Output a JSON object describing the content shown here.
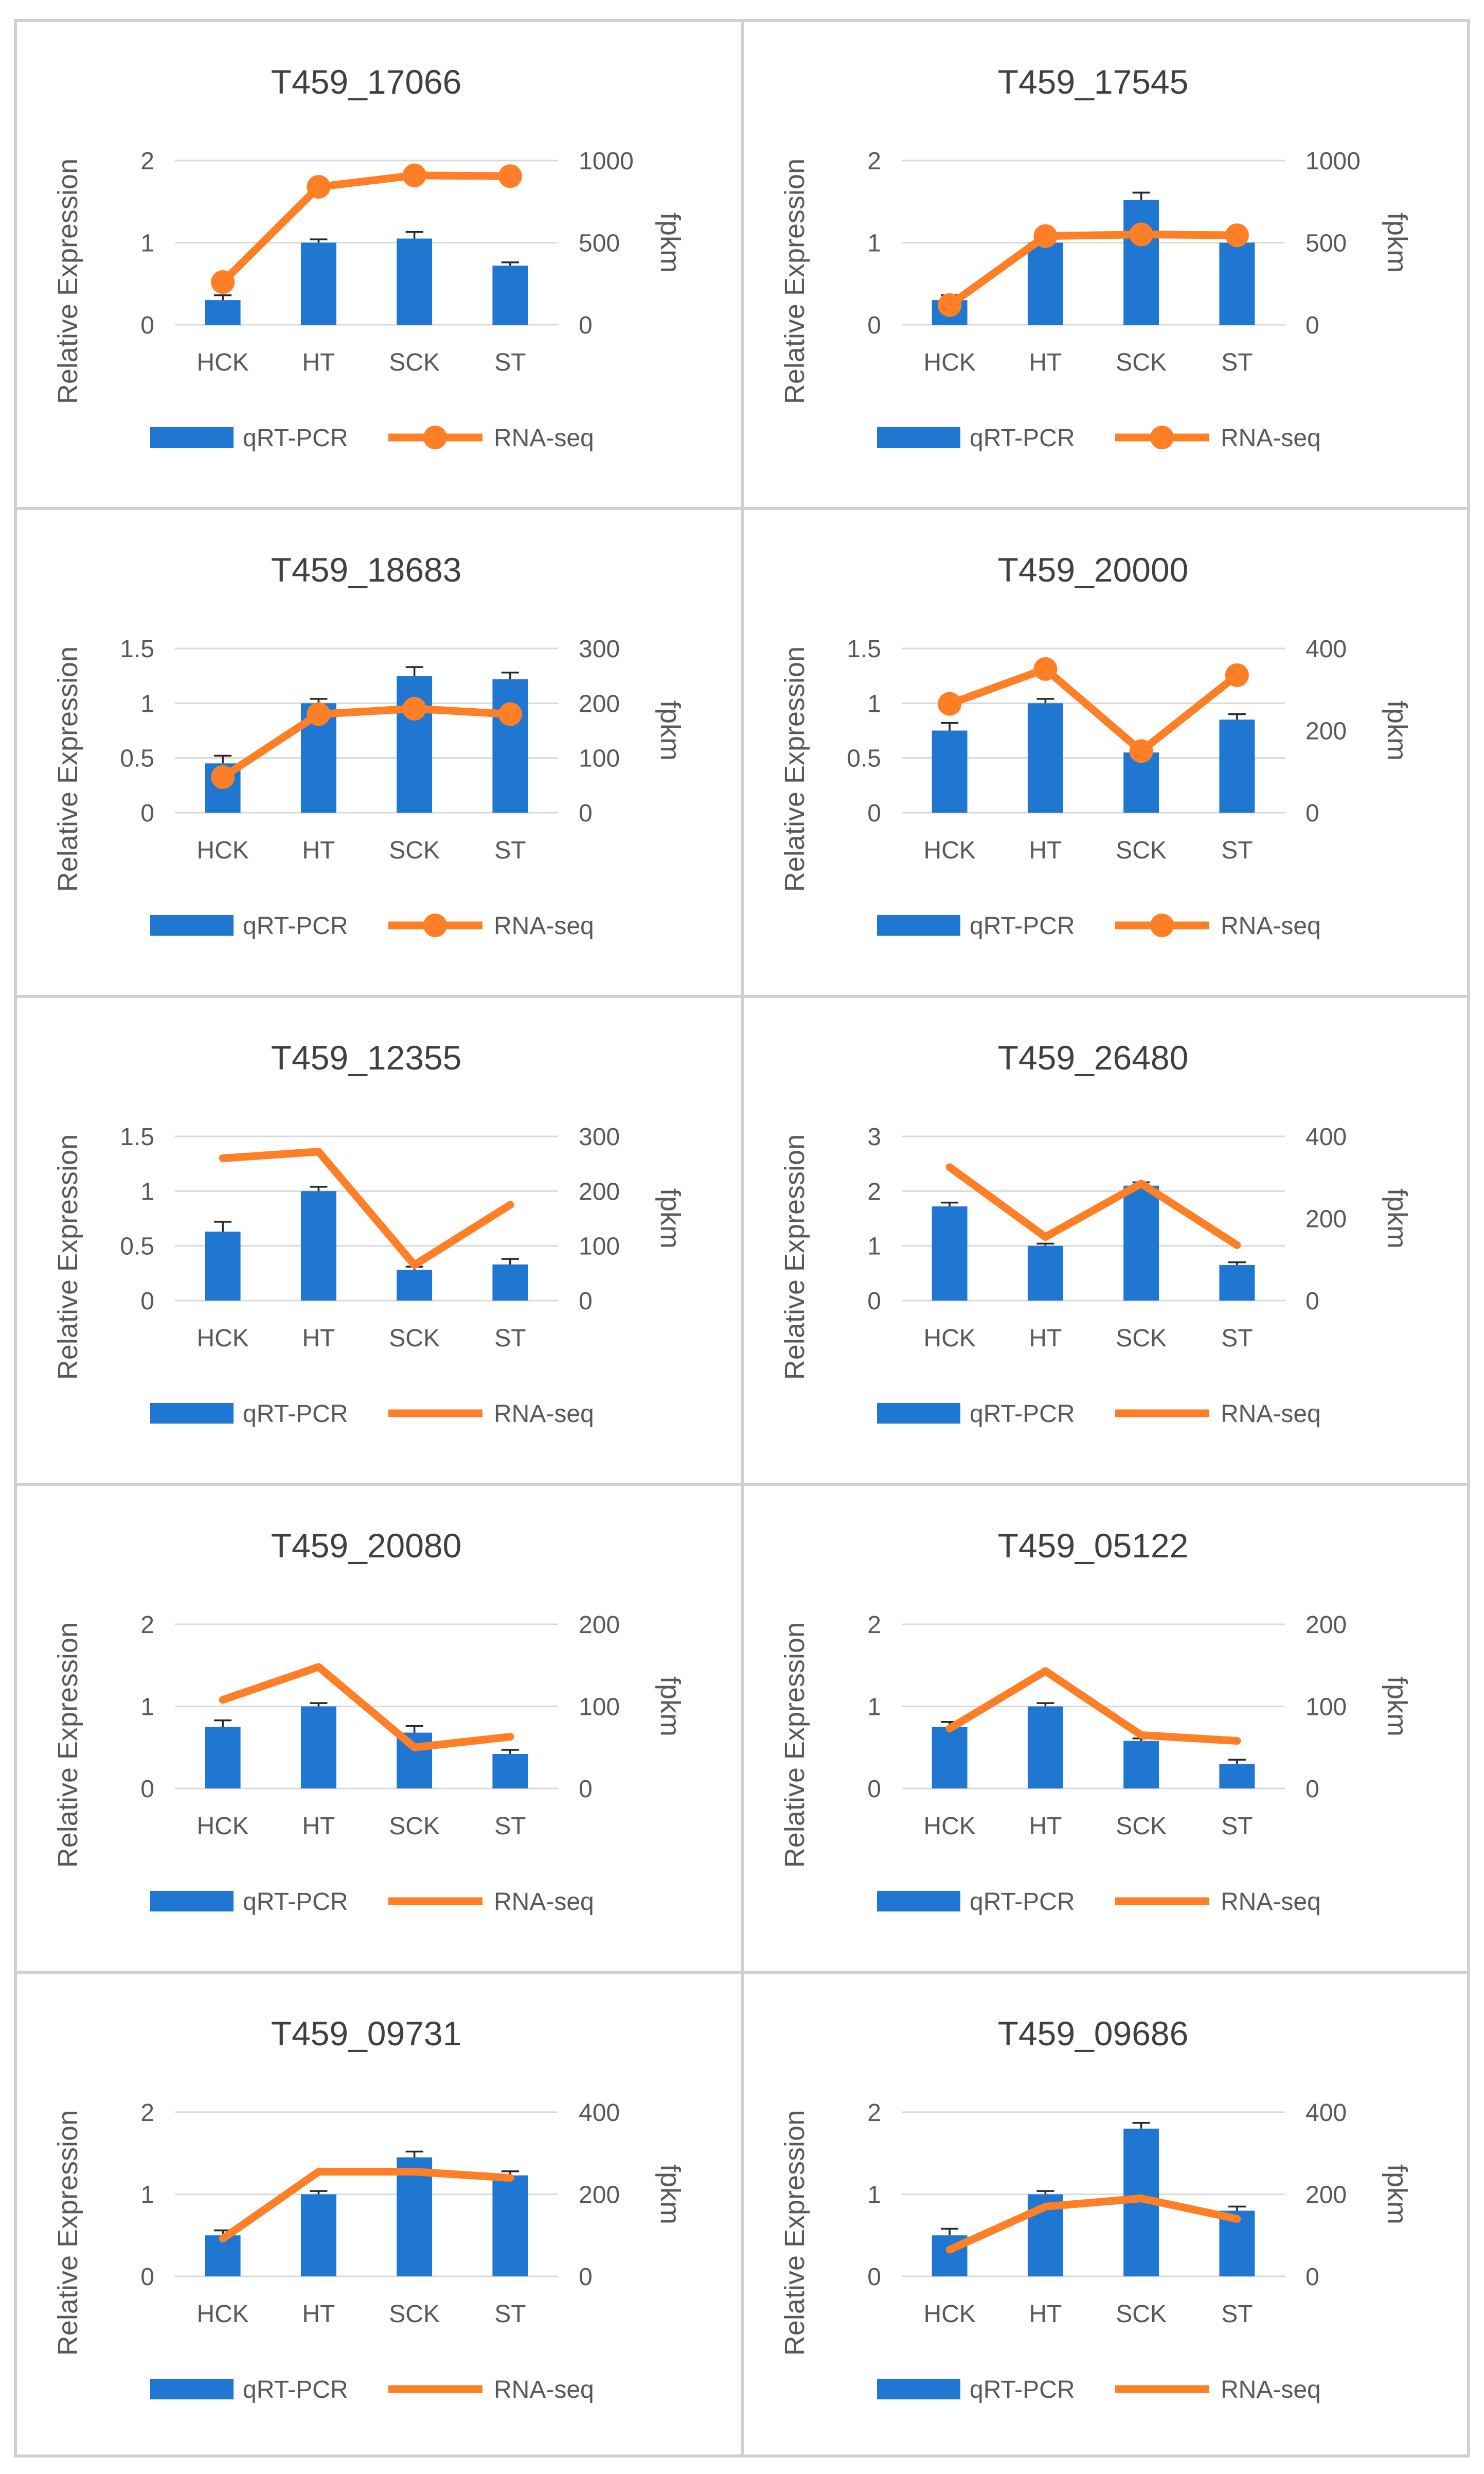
{
  "colors": {
    "bar": "#1f77d1",
    "line": "#ff7f27",
    "grid": "#d9d9d9",
    "panel_border": "#d0d0d0"
  },
  "legend": {
    "bar_label": "qRT-PCR",
    "line_label": "RNA-seq"
  },
  "chart_data": [
    {
      "type": "bar+line",
      "title": "T459_17066",
      "categories": [
        "HCK",
        "HT",
        "SCK",
        "ST"
      ],
      "ylabel": "Relative Expression",
      "y2label": "fpkm",
      "ylim": [
        0,
        2
      ],
      "yticks": [
        "0",
        "1",
        "2"
      ],
      "y2lim": [
        0,
        1000
      ],
      "y2ticks": [
        "0",
        "500",
        "1000"
      ],
      "markers": true,
      "series": [
        {
          "name": "qRT-PCR",
          "axis": "left",
          "values": [
            0.3,
            1.0,
            1.05,
            0.72
          ],
          "errors": [
            0.06,
            0.04,
            0.08,
            0.04
          ]
        },
        {
          "name": "RNA-seq",
          "axis": "right",
          "values": [
            260,
            840,
            910,
            905
          ]
        }
      ]
    },
    {
      "type": "bar+line",
      "title": "T459_17545",
      "categories": [
        "HCK",
        "HT",
        "SCK",
        "ST"
      ],
      "ylabel": "Relative Expression",
      "y2label": "fpkm",
      "ylim": [
        0,
        2
      ],
      "yticks": [
        "0",
        "1",
        "2"
      ],
      "y2lim": [
        0,
        1000
      ],
      "y2ticks": [
        "0",
        "500",
        "1000"
      ],
      "markers": true,
      "series": [
        {
          "name": "qRT-PCR",
          "axis": "left",
          "values": [
            0.3,
            1.0,
            1.52,
            1.0
          ],
          "errors": [
            0.06,
            0.05,
            0.09,
            0.05
          ]
        },
        {
          "name": "RNA-seq",
          "axis": "right",
          "values": [
            120,
            540,
            550,
            545
          ]
        }
      ]
    },
    {
      "type": "bar+line",
      "title": "T459_18683",
      "categories": [
        "HCK",
        "HT",
        "SCK",
        "ST"
      ],
      "ylabel": "Relative Expression",
      "y2label": "fpkm",
      "ylim": [
        0,
        1.5
      ],
      "yticks": [
        "0",
        "0.5",
        "1",
        "1.5"
      ],
      "y2lim": [
        0,
        300
      ],
      "y2ticks": [
        "0",
        "100",
        "200",
        "300"
      ],
      "markers": true,
      "series": [
        {
          "name": "qRT-PCR",
          "axis": "left",
          "values": [
            0.45,
            1.0,
            1.25,
            1.22
          ],
          "errors": [
            0.07,
            0.04,
            0.08,
            0.06
          ]
        },
        {
          "name": "RNA-seq",
          "axis": "right",
          "values": [
            65,
            180,
            190,
            180
          ]
        }
      ]
    },
    {
      "type": "bar+line",
      "title": "T459_20000",
      "categories": [
        "HCK",
        "HT",
        "SCK",
        "ST"
      ],
      "ylabel": "Relative Expression",
      "y2label": "fpkm",
      "ylim": [
        0,
        1.5
      ],
      "yticks": [
        "0",
        "0.5",
        "1",
        "1.5"
      ],
      "y2lim": [
        0,
        400
      ],
      "y2ticks": [
        "0",
        "200",
        "400"
      ],
      "markers": true,
      "series": [
        {
          "name": "qRT-PCR",
          "axis": "left",
          "values": [
            0.75,
            1.0,
            0.55,
            0.85
          ],
          "errors": [
            0.07,
            0.04,
            0.05,
            0.05
          ]
        },
        {
          "name": "RNA-seq",
          "axis": "right",
          "values": [
            265,
            350,
            150,
            335
          ]
        }
      ]
    },
    {
      "type": "bar+line",
      "title": "T459_12355",
      "categories": [
        "HCK",
        "HT",
        "SCK",
        "ST"
      ],
      "ylabel": "Relative Expression",
      "y2label": "fpkm",
      "ylim": [
        0,
        1.5
      ],
      "yticks": [
        "0",
        "0.5",
        "1",
        "1.5"
      ],
      "y2lim": [
        0,
        300
      ],
      "y2ticks": [
        "0",
        "100",
        "200",
        "300"
      ],
      "markers": false,
      "series": [
        {
          "name": "qRT-PCR",
          "axis": "left",
          "values": [
            0.63,
            1.0,
            0.28,
            0.33
          ],
          "errors": [
            0.09,
            0.04,
            0.03,
            0.05
          ]
        },
        {
          "name": "RNA-seq",
          "axis": "right",
          "values": [
            260,
            272,
            65,
            175
          ]
        }
      ]
    },
    {
      "type": "bar+line",
      "title": "T459_26480",
      "categories": [
        "HCK",
        "HT",
        "SCK",
        "ST"
      ],
      "ylabel": "Relative Expression",
      "y2label": "fpkm",
      "ylim": [
        0,
        3
      ],
      "yticks": [
        "0",
        "1",
        "2",
        "3"
      ],
      "y2lim": [
        0,
        400
      ],
      "y2ticks": [
        "0",
        "200",
        "400"
      ],
      "markers": false,
      "series": [
        {
          "name": "qRT-PCR",
          "axis": "left",
          "values": [
            1.72,
            1.0,
            2.1,
            0.65
          ],
          "errors": [
            0.07,
            0.04,
            0.06,
            0.05
          ]
        },
        {
          "name": "RNA-seq",
          "axis": "right",
          "values": [
            325,
            155,
            285,
            135
          ]
        }
      ]
    },
    {
      "type": "bar+line",
      "title": "T459_20080",
      "categories": [
        "HCK",
        "HT",
        "SCK",
        "ST"
      ],
      "ylabel": "Relative Expression",
      "y2label": "fpkm",
      "ylim": [
        0,
        2
      ],
      "yticks": [
        "0",
        "1",
        "2"
      ],
      "y2lim": [
        0,
        200
      ],
      "y2ticks": [
        "0",
        "100",
        "200"
      ],
      "markers": false,
      "series": [
        {
          "name": "qRT-PCR",
          "axis": "left",
          "values": [
            0.75,
            1.0,
            0.68,
            0.42
          ],
          "errors": [
            0.08,
            0.04,
            0.08,
            0.05
          ]
        },
        {
          "name": "RNA-seq",
          "axis": "right",
          "values": [
            108,
            148,
            50,
            63
          ]
        }
      ]
    },
    {
      "type": "bar+line",
      "title": "T459_05122",
      "categories": [
        "HCK",
        "HT",
        "SCK",
        "ST"
      ],
      "ylabel": "Relative Expression",
      "y2label": "fpkm",
      "ylim": [
        0,
        2
      ],
      "yticks": [
        "0",
        "1",
        "2"
      ],
      "y2lim": [
        0,
        200
      ],
      "y2ticks": [
        "0",
        "100",
        "200"
      ],
      "markers": false,
      "series": [
        {
          "name": "qRT-PCR",
          "axis": "left",
          "values": [
            0.75,
            1.0,
            0.58,
            0.3
          ],
          "errors": [
            0.06,
            0.04,
            0.03,
            0.05
          ]
        },
        {
          "name": "RNA-seq",
          "axis": "right",
          "values": [
            73,
            143,
            65,
            58
          ]
        }
      ]
    },
    {
      "type": "bar+line",
      "title": "T459_09731",
      "categories": [
        "HCK",
        "HT",
        "SCK",
        "ST"
      ],
      "ylabel": "Relative Expression",
      "y2label": "fpkm",
      "ylim": [
        0,
        2
      ],
      "yticks": [
        "0",
        "1",
        "2"
      ],
      "y2lim": [
        0,
        400
      ],
      "y2ticks": [
        "0",
        "200",
        "400"
      ],
      "markers": false,
      "series": [
        {
          "name": "qRT-PCR",
          "axis": "left",
          "values": [
            0.5,
            1.0,
            1.45,
            1.23
          ],
          "errors": [
            0.06,
            0.04,
            0.07,
            0.05
          ]
        },
        {
          "name": "RNA-seq",
          "axis": "right",
          "values": [
            92,
            255,
            255,
            240
          ]
        }
      ]
    },
    {
      "type": "bar+line",
      "title": "T459_09686",
      "categories": [
        "HCK",
        "HT",
        "SCK",
        "ST"
      ],
      "ylabel": "Relative Expression",
      "y2label": "fpkm",
      "ylim": [
        0,
        2
      ],
      "yticks": [
        "0",
        "1",
        "2"
      ],
      "y2lim": [
        0,
        400
      ],
      "y2ticks": [
        "0",
        "200",
        "400"
      ],
      "markers": false,
      "series": [
        {
          "name": "qRT-PCR",
          "axis": "left",
          "values": [
            0.5,
            1.0,
            1.8,
            0.8
          ],
          "errors": [
            0.08,
            0.04,
            0.07,
            0.05
          ]
        },
        {
          "name": "RNA-seq",
          "axis": "right",
          "values": [
            65,
            170,
            190,
            140
          ]
        }
      ]
    }
  ]
}
